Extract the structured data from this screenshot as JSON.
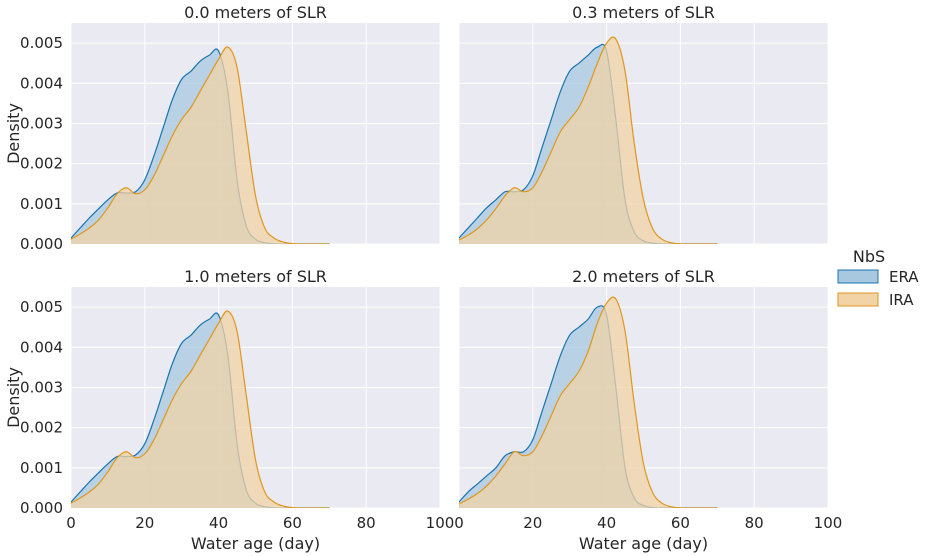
{
  "chart_data": {
    "type": "area",
    "xlabel": "Water age (day)",
    "ylabel": "Density",
    "xlim": [
      0,
      100
    ],
    "ylim": [
      0,
      0.0055
    ],
    "xticks": [
      0,
      20,
      40,
      60,
      80,
      100
    ],
    "yticks": [
      0.0,
      0.001,
      0.002,
      0.003,
      0.004,
      0.005
    ],
    "ytick_labels": [
      "0.000",
      "0.001",
      "0.002",
      "0.003",
      "0.004",
      "0.005"
    ],
    "grid": true,
    "legend": {
      "title": "NbS",
      "placement": "right",
      "entries": [
        {
          "label": "ERA",
          "color": "#1f77b4"
        },
        {
          "label": "IRA",
          "color": "#e0a030"
        }
      ]
    },
    "colors": {
      "ERA_line": "#1874b0",
      "ERA_fill": "#a8c8e0",
      "IRA_line": "#e0961c",
      "IRA_fill": "#f2d3a6",
      "panel_bg": "#eaeaf2",
      "grid": "#ffffff"
    },
    "x": [
      0,
      2.5,
      5,
      7.5,
      10,
      12.5,
      15,
      17.5,
      20,
      22.5,
      25,
      27.5,
      30,
      32.5,
      35,
      37.5,
      40,
      42.5,
      45,
      47.5,
      50,
      52.5,
      55,
      57.5,
      60,
      62.5,
      65,
      67.5,
      70
    ],
    "panels": [
      {
        "title": "0.0 meters of SLR",
        "series": [
          {
            "name": "ERA",
            "values": [
              0.00015,
              0.0004,
              0.00065,
              0.00088,
              0.0011,
              0.00127,
              0.00127,
              0.0013,
              0.0016,
              0.0022,
              0.0029,
              0.0036,
              0.0041,
              0.0043,
              0.00455,
              0.0047,
              0.0048,
              0.0038,
              0.0016,
              0.00045,
              0.00012,
              3e-05,
              5e-06,
              0,
              0,
              0,
              0,
              0,
              0
            ]
          },
          {
            "name": "IRA",
            "values": [
              0.00012,
              0.00025,
              0.0004,
              0.0006,
              0.0009,
              0.00125,
              0.0014,
              0.00125,
              0.00135,
              0.0017,
              0.0022,
              0.0027,
              0.0031,
              0.0034,
              0.0038,
              0.0042,
              0.0046,
              0.0049,
              0.0044,
              0.0028,
              0.0012,
              0.0004,
              0.00015,
              5e-05,
              1e-05,
              0,
              0,
              0,
              0
            ]
          }
        ]
      },
      {
        "title": "0.3 meters of SLR",
        "series": [
          {
            "name": "ERA",
            "values": [
              0.00015,
              0.0004,
              0.00065,
              0.0009,
              0.0011,
              0.0013,
              0.0013,
              0.00135,
              0.0017,
              0.0024,
              0.0031,
              0.0038,
              0.0043,
              0.0045,
              0.0047,
              0.0049,
              0.0048,
              0.0031,
              0.0011,
              0.0003,
              8e-05,
              2e-05,
              0,
              0,
              0,
              0,
              0,
              0,
              0
            ]
          },
          {
            "name": "IRA",
            "values": [
              0.0001,
              0.00022,
              0.00038,
              0.0006,
              0.00088,
              0.0012,
              0.0014,
              0.0013,
              0.0014,
              0.0018,
              0.0023,
              0.0028,
              0.0031,
              0.0034,
              0.0039,
              0.0045,
              0.005,
              0.0051,
              0.0043,
              0.0025,
              0.0011,
              0.00038,
              0.00012,
              3e-05,
              5e-06,
              0,
              0,
              0,
              0
            ]
          }
        ]
      },
      {
        "title": "1.0 meters of SLR",
        "series": [
          {
            "name": "ERA",
            "values": [
              0.00015,
              0.0004,
              0.00065,
              0.00088,
              0.0011,
              0.00128,
              0.00128,
              0.00132,
              0.0016,
              0.0022,
              0.0029,
              0.0036,
              0.0041,
              0.0043,
              0.00455,
              0.0047,
              0.0048,
              0.0038,
              0.0016,
              0.00045,
              0.00012,
              3e-05,
              5e-06,
              0,
              0,
              0,
              0,
              0,
              0
            ]
          },
          {
            "name": "IRA",
            "values": [
              0.00012,
              0.00025,
              0.0004,
              0.0006,
              0.0009,
              0.00125,
              0.0014,
              0.00125,
              0.00135,
              0.0017,
              0.0022,
              0.0027,
              0.0031,
              0.0034,
              0.0038,
              0.0042,
              0.0046,
              0.0049,
              0.0044,
              0.0028,
              0.0012,
              0.0004,
              0.00015,
              5e-05,
              1e-05,
              0,
              0,
              0,
              0
            ]
          }
        ]
      },
      {
        "title": "2.0 meters of SLR",
        "series": [
          {
            "name": "ERA",
            "values": [
              0.00015,
              0.0004,
              0.0006,
              0.0008,
              0.001,
              0.0013,
              0.0014,
              0.0014,
              0.0017,
              0.0024,
              0.0031,
              0.0038,
              0.0043,
              0.0045,
              0.0047,
              0.005,
              0.0048,
              0.003,
              0.001,
              0.00025,
              6e-05,
              1e-05,
              0,
              0,
              0,
              0,
              0,
              0,
              0
            ]
          },
          {
            "name": "IRA",
            "values": [
              0.0001,
              0.00022,
              0.00036,
              0.00055,
              0.0008,
              0.0011,
              0.0014,
              0.0013,
              0.0014,
              0.0018,
              0.0023,
              0.0028,
              0.0031,
              0.0034,
              0.0039,
              0.0046,
              0.0051,
              0.0052,
              0.0044,
              0.0026,
              0.0011,
              0.00038,
              0.00012,
              3e-05,
              5e-06,
              0,
              0,
              0,
              0
            ]
          }
        ]
      }
    ]
  }
}
